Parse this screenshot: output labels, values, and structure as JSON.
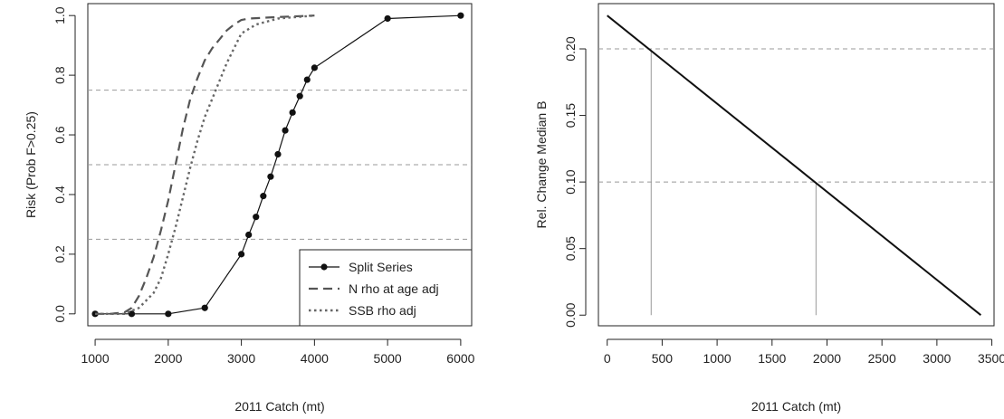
{
  "chart_data": [
    {
      "type": "line",
      "xlabel": "2011 Catch (mt)",
      "ylabel": "Risk (Prob F>0.25)",
      "xlim": [
        900,
        6150
      ],
      "ylim": [
        -0.04,
        1.04
      ],
      "x_ticks": [
        "1000",
        "2000",
        "3000",
        "4000",
        "5000",
        "6000"
      ],
      "x_tick_values": [
        1000,
        2000,
        3000,
        4000,
        5000,
        6000
      ],
      "y_ticks": [
        "0.0",
        "0.2",
        "0.4",
        "0.6",
        "0.8",
        "1.0"
      ],
      "y_tick_values": [
        0,
        0.2,
        0.4,
        0.6,
        0.8,
        1.0
      ],
      "reference_lines_y": [
        0.25,
        0.5,
        0.75
      ],
      "legend_position": "bottom-right",
      "series": [
        {
          "name": "Split Series",
          "style": "solid-points",
          "x": [
            1000,
            1500,
            2000,
            2500,
            3000,
            3100,
            3200,
            3300,
            3400,
            3500,
            3600,
            3700,
            3800,
            3900,
            4000,
            5000,
            6000
          ],
          "y": [
            0.0,
            0.0,
            0.0,
            0.02,
            0.2,
            0.265,
            0.325,
            0.395,
            0.46,
            0.535,
            0.615,
            0.675,
            0.73,
            0.785,
            0.825,
            0.99,
            1.0
          ]
        },
        {
          "name": "N rho at age adj",
          "style": "dashed",
          "x": [
            1000,
            1200,
            1400,
            1500,
            1600,
            1700,
            1800,
            1900,
            2000,
            2100,
            2200,
            2300,
            2400,
            2500,
            2600,
            2700,
            2800,
            2900,
            3000,
            3100,
            3500,
            4000
          ],
          "y": [
            0.0,
            0.0,
            0.005,
            0.02,
            0.06,
            0.12,
            0.19,
            0.28,
            0.38,
            0.5,
            0.62,
            0.72,
            0.79,
            0.85,
            0.89,
            0.92,
            0.95,
            0.97,
            0.985,
            0.99,
            0.995,
            1.0
          ]
        },
        {
          "name": "SSB rho adj",
          "style": "dotted",
          "x": [
            1000,
            1400,
            1600,
            1800,
            1900,
            2000,
            2100,
            2200,
            2300,
            2400,
            2500,
            2600,
            2800,
            3000,
            3200,
            3500,
            4000
          ],
          "y": [
            0.0,
            0.0,
            0.02,
            0.07,
            0.12,
            0.2,
            0.29,
            0.39,
            0.49,
            0.58,
            0.66,
            0.72,
            0.84,
            0.94,
            0.97,
            0.99,
            1.0
          ]
        }
      ]
    },
    {
      "type": "line",
      "xlabel": "2011 Catch (mt)",
      "ylabel": "Rel. Change Median B",
      "xlim": [
        -80,
        3520
      ],
      "ylim": [
        -0.008,
        0.234
      ],
      "x_ticks": [
        "0",
        "500",
        "1000",
        "1500",
        "2000",
        "2500",
        "3000",
        "3500"
      ],
      "x_tick_values": [
        0,
        500,
        1000,
        1500,
        2000,
        2500,
        3000,
        3500
      ],
      "y_ticks": [
        "0.00",
        "0.05",
        "0.10",
        "0.15",
        "0.20"
      ],
      "y_tick_values": [
        0,
        0.05,
        0.1,
        0.15,
        0.2
      ],
      "reference_lines_y": [
        0.1,
        0.2
      ],
      "reference_lines_x": [
        400,
        1900
      ],
      "series": [
        {
          "style": "solid",
          "x": [
            0,
            3400
          ],
          "y": [
            0.225,
            0.0
          ]
        }
      ]
    }
  ]
}
